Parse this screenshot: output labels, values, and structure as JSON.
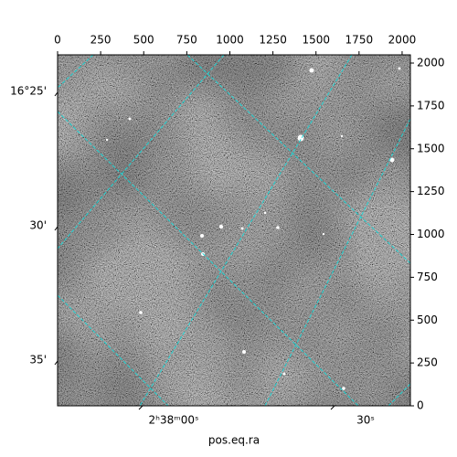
{
  "chart_data": {
    "type": "image",
    "xlim": [
      0,
      2048
    ],
    "xticks": [
      0,
      250,
      500,
      750,
      1000,
      1250,
      1500,
      1750,
      2000
    ],
    "ylim": [
      0,
      2048
    ],
    "yticks": [
      0,
      250,
      500,
      750,
      1000,
      1250,
      1500,
      1750,
      2000
    ],
    "ra_ticks": [
      "2ʰ38ᵐ00ˢ",
      "30ˢ"
    ],
    "dec_ticks": [
      "16°25'",
      "30'",
      "35'"
    ],
    "xlabel": "pos.eq.ra",
    "grid": true,
    "grid_color": "#1fd3d3"
  }
}
